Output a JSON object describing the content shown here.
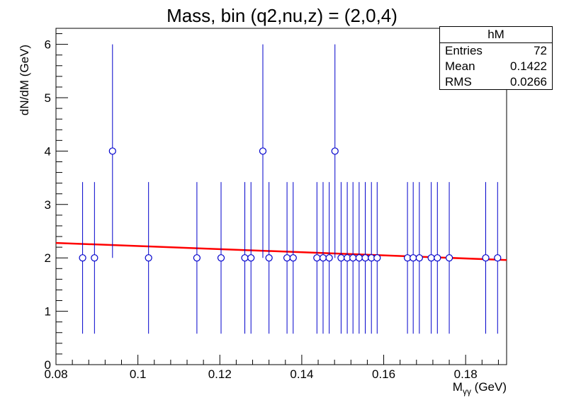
{
  "chart_data": {
    "type": "scatter",
    "title": "Mass, bin (q2,nu,z) = (2,0,4)",
    "xlabel": "M",
    "xlabel_sub": "γγ",
    "xlabel_unit": " (GeV)",
    "ylabel": "dN/dM (GeV)",
    "xlim": [
      0.08,
      0.19
    ],
    "ylim": [
      0,
      6.3
    ],
    "x_ticks": [
      0.08,
      0.1,
      0.12,
      0.14,
      0.16,
      0.18
    ],
    "x_tick_labels": [
      "0.08",
      "0.1",
      "0.12",
      "0.14",
      "0.16",
      "0.18"
    ],
    "y_ticks": [
      0,
      1,
      2,
      3,
      4,
      5,
      6
    ],
    "y_tick_labels": [
      "0",
      "1",
      "2",
      "3",
      "4",
      "5",
      "6"
    ],
    "grid": false,
    "series": [
      {
        "marker": "open-circle",
        "color": "#0000cc",
        "points": [
          {
            "x": 0.0865,
            "y": 2,
            "err_low": 1.42,
            "err_high": 1.42
          },
          {
            "x": 0.0894,
            "y": 2,
            "err_low": 1.42,
            "err_high": 1.42
          },
          {
            "x": 0.0938,
            "y": 4,
            "err_low": 2.0,
            "err_high": 2.0
          },
          {
            "x": 0.1026,
            "y": 2,
            "err_low": 1.42,
            "err_high": 1.42
          },
          {
            "x": 0.1144,
            "y": 2,
            "err_low": 1.42,
            "err_high": 1.42
          },
          {
            "x": 0.1203,
            "y": 2,
            "err_low": 1.42,
            "err_high": 1.42
          },
          {
            "x": 0.1261,
            "y": 2,
            "err_low": 1.42,
            "err_high": 1.42
          },
          {
            "x": 0.1276,
            "y": 2,
            "err_low": 1.42,
            "err_high": 1.42
          },
          {
            "x": 0.1305,
            "y": 4,
            "err_low": 2.0,
            "err_high": 2.0
          },
          {
            "x": 0.132,
            "y": 2,
            "err_low": 1.42,
            "err_high": 1.42
          },
          {
            "x": 0.1364,
            "y": 2,
            "err_low": 1.42,
            "err_high": 1.42
          },
          {
            "x": 0.1379,
            "y": 2,
            "err_low": 1.42,
            "err_high": 1.42
          },
          {
            "x": 0.1437,
            "y": 2,
            "err_low": 1.42,
            "err_high": 1.42
          },
          {
            "x": 0.1452,
            "y": 2,
            "err_low": 1.42,
            "err_high": 1.42
          },
          {
            "x": 0.1467,
            "y": 2,
            "err_low": 1.42,
            "err_high": 1.42
          },
          {
            "x": 0.1481,
            "y": 4,
            "err_low": 2.0,
            "err_high": 2.0
          },
          {
            "x": 0.1496,
            "y": 2,
            "err_low": 1.42,
            "err_high": 1.42
          },
          {
            "x": 0.1511,
            "y": 2,
            "err_low": 1.42,
            "err_high": 1.42
          },
          {
            "x": 0.1525,
            "y": 2,
            "err_low": 1.42,
            "err_high": 1.42
          },
          {
            "x": 0.154,
            "y": 2,
            "err_low": 1.42,
            "err_high": 1.42
          },
          {
            "x": 0.1555,
            "y": 2,
            "err_low": 1.42,
            "err_high": 1.42
          },
          {
            "x": 0.157,
            "y": 2,
            "err_low": 1.42,
            "err_high": 1.42
          },
          {
            "x": 0.1584,
            "y": 2,
            "err_low": 1.42,
            "err_high": 1.42
          },
          {
            "x": 0.1658,
            "y": 2,
            "err_low": 1.42,
            "err_high": 1.42
          },
          {
            "x": 0.1672,
            "y": 2,
            "err_low": 1.42,
            "err_high": 1.42
          },
          {
            "x": 0.1687,
            "y": 2,
            "err_low": 1.42,
            "err_high": 1.42
          },
          {
            "x": 0.1716,
            "y": 2,
            "err_low": 1.42,
            "err_high": 1.42
          },
          {
            "x": 0.1731,
            "y": 2,
            "err_low": 1.42,
            "err_high": 1.42
          },
          {
            "x": 0.176,
            "y": 2,
            "err_low": 1.42,
            "err_high": 1.42
          },
          {
            "x": 0.1849,
            "y": 2,
            "err_low": 1.42,
            "err_high": 1.42
          },
          {
            "x": 0.1878,
            "y": 2,
            "err_low": 1.42,
            "err_high": 1.42
          }
        ]
      },
      {
        "type": "line",
        "color": "#ff0000",
        "x": [
          0.08,
          0.19
        ],
        "y": [
          2.28,
          1.96
        ]
      }
    ],
    "stats_box": {
      "title": "hM",
      "rows": [
        {
          "label": "Entries",
          "value": "72"
        },
        {
          "label": "Mean",
          "value": "0.1422"
        },
        {
          "label": "RMS",
          "value": "0.0266"
        }
      ],
      "placement": "top-right"
    }
  }
}
